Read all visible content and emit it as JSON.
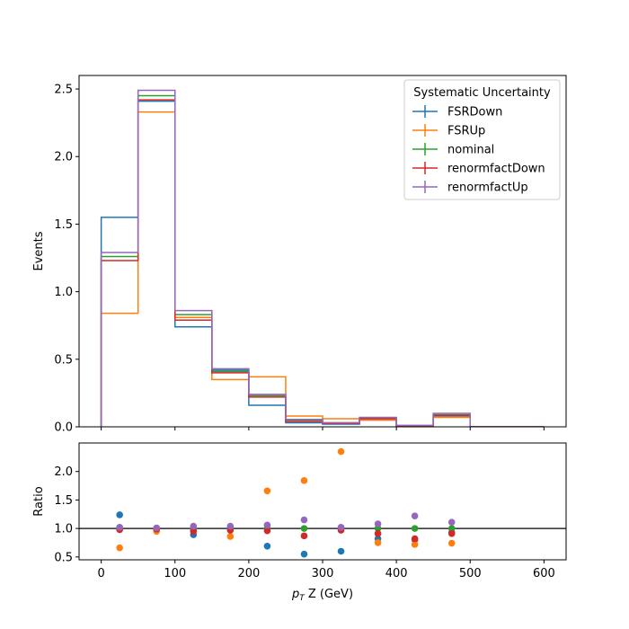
{
  "chart_data": [
    {
      "type": "step",
      "panel": "main",
      "ylabel": "Events",
      "legend": {
        "title": "Systematic Uncertainty",
        "placement": "top-right"
      },
      "ylim": [
        0,
        2.6
      ],
      "yticks": [
        "0.0",
        "0.5",
        "1.0",
        "1.5",
        "2.0",
        "2.5"
      ],
      "bin_edges": [
        0,
        50,
        100,
        150,
        200,
        250,
        300,
        350,
        400,
        450,
        500,
        550,
        600
      ],
      "series": [
        {
          "name": "FSRDown",
          "color": "#1f77b4",
          "values": [
            1.55,
            2.41,
            0.74,
            0.42,
            0.16,
            0.03,
            0.02,
            0.05,
            0.008,
            0.08,
            0.0,
            0.0
          ]
        },
        {
          "name": "FSRUp",
          "color": "#ff7f0e",
          "values": [
            0.84,
            2.33,
            0.81,
            0.35,
            0.37,
            0.08,
            0.06,
            0.05,
            0.007,
            0.07,
            0.0,
            0.0
          ]
        },
        {
          "name": "nominal",
          "color": "#2ca02c",
          "values": [
            1.26,
            2.45,
            0.83,
            0.41,
            0.23,
            0.05,
            0.03,
            0.065,
            0.009,
            0.09,
            0.0,
            0.0
          ]
        },
        {
          "name": "renormfactDown",
          "color": "#d62728",
          "values": [
            1.23,
            2.42,
            0.79,
            0.4,
            0.22,
            0.04,
            0.025,
            0.06,
            0.008,
            0.085,
            0.0,
            0.0
          ]
        },
        {
          "name": "renormfactUp",
          "color": "#9467bd",
          "values": [
            1.29,
            2.49,
            0.86,
            0.43,
            0.24,
            0.055,
            0.03,
            0.07,
            0.011,
            0.1,
            0.0,
            0.0
          ]
        }
      ]
    },
    {
      "type": "scatter",
      "panel": "ratio",
      "xlabel": "p_T Z (GeV)",
      "ylabel": "Ratio",
      "xlim": [
        -30,
        630
      ],
      "ylim": [
        0.45,
        2.5
      ],
      "xticks": [
        "0",
        "100",
        "200",
        "300",
        "400",
        "500",
        "600"
      ],
      "yticks": [
        "0.5",
        "1.0",
        "1.5",
        "2.0"
      ],
      "reference_line": 1.0,
      "x": [
        25,
        75,
        125,
        175,
        225,
        275,
        325,
        375,
        425,
        475
      ],
      "series": [
        {
          "name": "FSRDown",
          "color": "#1f77b4",
          "values": [
            1.24,
            0.98,
            0.89,
            1.01,
            0.69,
            0.55,
            0.6,
            0.82,
            0.8,
            0.93
          ]
        },
        {
          "name": "FSRUp",
          "color": "#ff7f0e",
          "values": [
            0.66,
            0.95,
            0.97,
            0.86,
            1.66,
            1.84,
            2.35,
            0.75,
            0.72,
            0.74
          ]
        },
        {
          "name": "nominal",
          "color": "#2ca02c",
          "values": [
            1.0,
            1.0,
            1.0,
            1.0,
            1.0,
            1.0,
            1.0,
            1.0,
            1.0,
            1.0
          ]
        },
        {
          "name": "renormfactDown",
          "color": "#d62728",
          "values": [
            0.98,
            0.99,
            0.95,
            0.97,
            0.96,
            0.87,
            0.97,
            0.91,
            0.82,
            0.91
          ]
        },
        {
          "name": "renormfactUp",
          "color": "#9467bd",
          "values": [
            1.02,
            1.01,
            1.04,
            1.04,
            1.06,
            1.15,
            1.02,
            1.08,
            1.22,
            1.11
          ]
        }
      ]
    }
  ]
}
